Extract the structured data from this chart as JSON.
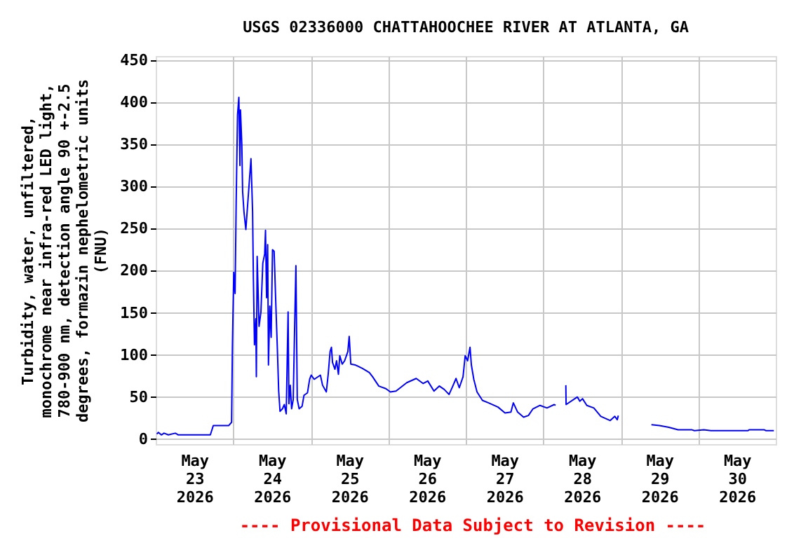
{
  "chart_data": {
    "type": "line",
    "title": "USGS 02336000 CHATTAHOOCHEE RIVER AT ATLANTA, GA",
    "ylabel": "Turbidity, water, unfiltered,\nmonochrome near infra-red LED light,\n780-900 nm, detection angle 90 +-2.5\ndegrees, formazin nephelometric units\n(FNU)",
    "annotations": [
      "---- Provisional Data Subject to Revision ----"
    ],
    "x": [
      "2026-05-23T00:20",
      "2026-05-23T00:50",
      "2026-05-23T01:45",
      "2026-05-23T02:35",
      "2026-05-23T03:55",
      "2026-05-23T06:05",
      "2026-05-23T07:00",
      "2026-05-23T16:55",
      "2026-05-23T17:50",
      "2026-05-23T22:35",
      "2026-05-23T23:30",
      "2026-05-23T23:45",
      "2026-05-24T00:10",
      "2026-05-24T00:35",
      "2026-05-24T00:55",
      "2026-05-24T01:20",
      "2026-05-24T01:45",
      "2026-05-24T02:05",
      "2026-05-24T02:15",
      "2026-05-24T02:40",
      "2026-05-24T02:55",
      "2026-05-24T03:20",
      "2026-05-24T03:55",
      "2026-05-24T05:30",
      "2026-05-24T06:00",
      "2026-05-24T06:15",
      "2026-05-24T06:35",
      "2026-05-24T07:00",
      "2026-05-24T07:10",
      "2026-05-24T07:25",
      "2026-05-24T08:00",
      "2026-05-24T08:35",
      "2026-05-24T09:10",
      "2026-05-24T09:45",
      "2026-05-24T10:00",
      "2026-05-24T10:20",
      "2026-05-24T10:40",
      "2026-05-24T10:55",
      "2026-05-24T11:20",
      "2026-05-24T11:45",
      "2026-05-24T12:10",
      "2026-05-24T12:40",
      "2026-05-24T13:15",
      "2026-05-24T13:40",
      "2026-05-24T14:05",
      "2026-05-24T14:30",
      "2026-05-24T15:15",
      "2026-05-24T15:50",
      "2026-05-24T16:25",
      "2026-05-24T17:00",
      "2026-05-24T17:15",
      "2026-05-24T17:40",
      "2026-05-24T18:05",
      "2026-05-24T18:35",
      "2026-05-24T19:00",
      "2026-05-24T19:25",
      "2026-05-24T19:50",
      "2026-05-24T20:25",
      "2026-05-24T21:20",
      "2026-05-24T21:55",
      "2026-05-24T23:00",
      "2026-05-24T23:40",
      "2026-05-25T00:10",
      "2026-05-25T01:05",
      "2026-05-25T03:00",
      "2026-05-25T03:40",
      "2026-05-25T04:50",
      "2026-05-25T05:25",
      "2026-05-25T06:00",
      "2026-05-25T06:25",
      "2026-05-25T06:45",
      "2026-05-25T07:30",
      "2026-05-25T08:00",
      "2026-05-25T08:35",
      "2026-05-25T09:00",
      "2026-05-25T09:45",
      "2026-05-25T10:30",
      "2026-05-25T11:30",
      "2026-05-25T11:55",
      "2026-05-25T12:25",
      "2026-05-25T13:50",
      "2026-05-25T16:00",
      "2026-05-25T18:10",
      "2026-05-25T19:10",
      "2026-05-25T21:05",
      "2026-05-25T23:15",
      "2026-05-26T00:40",
      "2026-05-26T02:25",
      "2026-05-26T05:45",
      "2026-05-26T08:40",
      "2026-05-26T10:50",
      "2026-05-26T12:15",
      "2026-05-26T14:10",
      "2026-05-26T15:50",
      "2026-05-26T17:20",
      "2026-05-26T18:50",
      "2026-05-26T20:00",
      "2026-05-26T21:00",
      "2026-05-26T22:00",
      "2026-05-26T23:10",
      "2026-05-26T23:50",
      "2026-05-27T00:35",
      "2026-05-27T01:20",
      "2026-05-27T01:45",
      "2026-05-27T02:30",
      "2026-05-27T03:30",
      "2026-05-27T05:10",
      "2026-05-27T07:05",
      "2026-05-27T10:00",
      "2026-05-27T12:10",
      "2026-05-27T14:00",
      "2026-05-27T14:45",
      "2026-05-27T16:05",
      "2026-05-27T17:55",
      "2026-05-27T19:25",
      "2026-05-27T20:50",
      "2026-05-27T23:00",
      "2026-05-28T01:10",
      "2026-05-28T03:25",
      "2026-05-28T03:50",
      "2026-05-28T05:30",
      "2026-05-28T07:00",
      "2026-05-28T07:05",
      "2026-05-28T10:35",
      "2026-05-28T11:20",
      "2026-05-28T12:10",
      "2026-05-28T13:30",
      "2026-05-28T15:40",
      "2026-05-28T17:50",
      "2026-05-28T20:45",
      "2026-05-28T22:10",
      "2026-05-28T22:55",
      "2026-05-28T23:15",
      "2026-05-29T04:00",
      "2026-05-29T09:30",
      "2026-05-29T12:00",
      "2026-05-29T14:55",
      "2026-05-29T17:45",
      "2026-05-29T22:05",
      "2026-05-29T22:50",
      "2026-05-30T01:45",
      "2026-05-30T03:55",
      "2026-05-30T15:25",
      "2026-05-30T15:45",
      "2026-05-30T20:30",
      "2026-05-30T21:00",
      "2026-05-30T23:25"
    ],
    "series": [
      {
        "color": "#0000ff",
        "values": [
          6,
          8,
          5,
          7,
          5,
          7,
          5,
          5,
          16,
          16,
          20,
          110,
          198,
          173,
          281,
          385,
          406,
          325,
          391,
          350,
          294,
          270,
          249,
          333,
          270,
          190,
          112,
          143,
          74,
          217,
          134,
          151,
          209,
          220,
          248,
          168,
          231,
          88,
          158,
          121,
          225,
          223,
          154,
          108,
          57,
          33,
          36,
          41,
          30,
          151,
          42,
          64,
          36,
          47,
          129,
          206,
          47,
          36,
          39,
          52,
          55,
          71,
          76,
          71,
          76,
          64,
          56,
          77,
          104,
          109,
          91,
          83,
          93,
          77,
          99,
          89,
          93,
          104,
          122,
          89,
          88,
          84,
          79,
          74,
          63,
          60,
          56,
          57,
          67,
          72,
          66,
          69,
          57,
          63,
          59,
          53,
          63,
          72,
          61,
          74,
          99,
          93,
          109,
          88,
          71,
          56,
          46,
          43,
          38,
          31,
          32,
          43,
          32,
          26,
          28,
          36,
          40,
          37,
          41,
          40,
          null,
          64,
          41,
          50,
          45,
          48,
          40,
          37,
          27,
          22,
          27,
          23,
          28,
          null,
          17,
          16,
          14,
          11,
          11,
          10,
          11,
          10,
          10,
          11,
          11,
          10,
          10
        ]
      }
    ],
    "xlim": [
      "2026-05-23T00:00",
      "2026-05-31T00:00"
    ],
    "xticks": [
      {
        "value": "2026-05-23T12:00",
        "label": "May\n23\n2026"
      },
      {
        "value": "2026-05-24T00:00",
        "label": null
      },
      {
        "value": "2026-05-24T12:00",
        "label": "May\n24\n2026"
      },
      {
        "value": "2026-05-25T00:00",
        "label": null
      },
      {
        "value": "2026-05-25T12:00",
        "label": "May\n25\n2026"
      },
      {
        "value": "2026-05-26T00:00",
        "label": null
      },
      {
        "value": "2026-05-26T12:00",
        "label": "May\n26\n2026"
      },
      {
        "value": "2026-05-27T00:00",
        "label": null
      },
      {
        "value": "2026-05-27T12:00",
        "label": "May\n27\n2026"
      },
      {
        "value": "2026-05-28T00:00",
        "label": null
      },
      {
        "value": "2026-05-28T12:00",
        "label": "May\n28\n2026"
      },
      {
        "value": "2026-05-29T00:00",
        "label": null
      },
      {
        "value": "2026-05-29T12:00",
        "label": "May\n29\n2026"
      },
      {
        "value": "2026-05-30T00:00",
        "label": null
      },
      {
        "value": "2026-05-30T12:00",
        "label": "May\n30\n2026"
      }
    ],
    "ylim": [
      -6,
      455
    ],
    "yticks": [
      0,
      50,
      100,
      150,
      200,
      250,
      300,
      350,
      400,
      450
    ],
    "grid": true,
    "line_style": "solid",
    "marker": "none"
  }
}
